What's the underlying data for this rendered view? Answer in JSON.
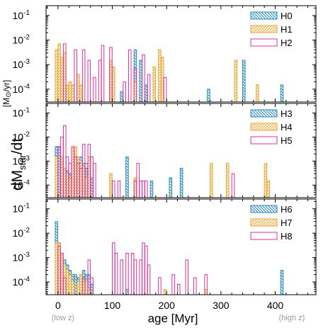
{
  "figure": {
    "ylabel": "dM",
    "ylabel_sub": "star",
    "ylabel_tail": "/dt",
    "yunit_prefix": "[M",
    "yunit_sun": "⊙",
    "yunit_suffix": "/yr]",
    "xlabel": "age [Myr]",
    "note_left": "(low z)",
    "note_right": "(high z)"
  },
  "colors": {
    "halo_a": "#2a8ab6",
    "halo_b": "#e8a630",
    "halo_c": "#e0309c"
  },
  "chart_data": [
    {
      "type": "bar",
      "panel": "top",
      "x_ticks": [
        "0",
        "100",
        "200",
        "300",
        "400"
      ],
      "y_ticks": [
        "10",
        "10",
        "10",
        "10"
      ],
      "y_tick_exps": [
        "-1",
        "-2",
        "-3",
        "-4"
      ],
      "xlim": [
        -22,
        475
      ],
      "ylim": [
        3e-05,
        0.25
      ],
      "yscale": "log",
      "legend_position": "top-right",
      "series": [
        {
          "name": "H0",
          "color": "#2a8ab6",
          "pattern": "hatch-back",
          "bins": [
            [
              95,
              100,
              0.0005
            ],
            [
              115,
              120,
              8e-05
            ],
            [
              140,
              145,
              0.004
            ],
            [
              150,
              155,
              0.0015
            ],
            [
              160,
              165,
              0.00015
            ],
            [
              185,
              190,
              6e-05
            ],
            [
              275,
              280,
              0.0001
            ],
            [
              340,
              345,
              0.0015
            ],
            [
              410,
              415,
              0.00015
            ]
          ]
        },
        {
          "name": "H1",
          "color": "#e8a630",
          "pattern": "hatch-fwd",
          "bins": [
            [
              -5,
              0,
              0.004
            ],
            [
              0,
              5,
              0.007
            ],
            [
              5,
              10,
              0.002
            ],
            [
              10,
              15,
              0.003
            ],
            [
              15,
              20,
              0.00015
            ],
            [
              20,
              25,
              0.0002
            ],
            [
              25,
              30,
              0.00015
            ],
            [
              35,
              40,
              0.0004
            ],
            [
              40,
              45,
              0.00015
            ],
            [
              95,
              100,
              0.0015
            ],
            [
              100,
              105,
              0.0008
            ],
            [
              140,
              145,
              0.0002
            ],
            [
              175,
              180,
              0.0008
            ],
            [
              185,
              190,
              0.004
            ],
            [
              190,
              195,
              0.002
            ],
            [
              325,
              330,
              0.0015
            ],
            [
              365,
              370,
              0.00015
            ]
          ]
        },
        {
          "name": "H2",
          "color": "#e0309c",
          "pattern": "outline",
          "bins": [
            [
              10,
              15,
              0.007
            ],
            [
              30,
              35,
              0.004
            ],
            [
              45,
              50,
              0.004
            ],
            [
              55,
              60,
              0.0015
            ],
            [
              65,
              70,
              0.0003
            ],
            [
              75,
              80,
              0.0015
            ],
            [
              80,
              85,
              0.006
            ],
            [
              95,
              100,
              0.005
            ],
            [
              120,
              125,
              0.0002
            ],
            [
              130,
              135,
              0.004
            ],
            [
              140,
              145,
              0.0007
            ],
            [
              155,
              160,
              0.0025
            ],
            [
              165,
              170,
              0.0004
            ],
            [
              195,
              200,
              0.0003
            ]
          ]
        }
      ]
    },
    {
      "type": "bar",
      "panel": "middle",
      "x_ticks": [
        "0",
        "100",
        "200",
        "300",
        "400"
      ],
      "y_ticks": [
        "10",
        "10",
        "10",
        "10"
      ],
      "y_tick_exps": [
        "-1",
        "-2",
        "-3",
        "-4"
      ],
      "xlim": [
        -22,
        475
      ],
      "ylim": [
        3e-05,
        0.25
      ],
      "yscale": "log",
      "legend_position": "top-right",
      "series": [
        {
          "name": "H3",
          "color": "#2a8ab6",
          "pattern": "hatch-back",
          "bins": [
            [
              -5,
              0,
              0.004
            ],
            [
              0,
              5,
              0.004
            ],
            [
              5,
              10,
              0.0015
            ],
            [
              10,
              15,
              0.0005
            ],
            [
              15,
              20,
              0.0004
            ],
            [
              20,
              25,
              0.0003
            ],
            [
              25,
              30,
              0.0002
            ],
            [
              30,
              35,
              0.0002
            ],
            [
              35,
              40,
              0.0002
            ],
            [
              40,
              45,
              0.0015
            ],
            [
              45,
              50,
              0.0008
            ],
            [
              50,
              55,
              0.0005
            ],
            [
              55,
              60,
              0.0003
            ],
            [
              60,
              65,
              0.0002
            ],
            [
              125,
              130,
              0.0015
            ],
            [
              170,
              175,
              0.00015
            ],
            [
              205,
              210,
              0.0002
            ],
            [
              225,
              230,
              0.0005
            ]
          ]
        },
        {
          "name": "H4",
          "color": "#e8a630",
          "pattern": "hatch-fwd",
          "bins": [
            [
              -5,
              0,
              0.0015
            ],
            [
              5,
              10,
              0.0015
            ],
            [
              10,
              15,
              0.0005
            ],
            [
              15,
              20,
              0.0003
            ],
            [
              20,
              25,
              0.0002
            ],
            [
              25,
              30,
              0.004
            ],
            [
              30,
              35,
              0.004
            ],
            [
              35,
              40,
              0.0015
            ],
            [
              40,
              45,
              0.0008
            ],
            [
              45,
              50,
              0.0005
            ],
            [
              50,
              55,
              0.0002
            ],
            [
              55,
              60,
              0.0015
            ],
            [
              95,
              100,
              0.0003
            ],
            [
              140,
              145,
              0.0002
            ],
            [
              280,
              285,
              0.0008
            ],
            [
              310,
              315,
              0.0008
            ],
            [
              380,
              385,
              0.0008
            ],
            [
              385,
              390,
              0.00015
            ]
          ]
        },
        {
          "name": "H5",
          "color": "#e0309c",
          "pattern": "outline",
          "bins": [
            [
              0,
              5,
              0.004
            ],
            [
              5,
              10,
              0.01
            ],
            [
              10,
              15,
              0.03
            ],
            [
              15,
              20,
              0.0015
            ],
            [
              20,
              25,
              0.0008
            ],
            [
              25,
              30,
              0.004
            ],
            [
              30,
              35,
              0.0015
            ],
            [
              35,
              40,
              0.0008
            ],
            [
              40,
              45,
              0.0005
            ],
            [
              45,
              50,
              0.005
            ],
            [
              50,
              55,
              0.0008
            ],
            [
              55,
              60,
              0.005
            ],
            [
              60,
              65,
              0.0015
            ],
            [
              65,
              70,
              0.0008
            ],
            [
              100,
              105,
              0.00015
            ],
            [
              110,
              115,
              0.00015
            ],
            [
              140,
              145,
              0.00015
            ],
            [
              145,
              150,
              0.0008
            ],
            [
              150,
              155,
              0.00015
            ],
            [
              155,
              160,
              0.00015
            ],
            [
              160,
              165,
              0.00015
            ],
            [
              320,
              325,
              0.0003
            ]
          ]
        }
      ]
    },
    {
      "type": "bar",
      "panel": "bottom",
      "x_ticks": [
        "0",
        "100",
        "200",
        "300",
        "400"
      ],
      "y_ticks": [
        "10",
        "10",
        "10",
        "10"
      ],
      "y_tick_exps": [
        "-1",
        "-2",
        "-3",
        "-4"
      ],
      "xlim": [
        -22,
        475
      ],
      "ylim": [
        3e-05,
        0.25
      ],
      "yscale": "log",
      "legend_position": "top-right",
      "series": [
        {
          "name": "H6",
          "color": "#2a8ab6",
          "pattern": "hatch-back",
          "bins": [
            [
              -5,
              0,
              0.03
            ],
            [
              0,
              5,
              0.004
            ],
            [
              5,
              10,
              0.0015
            ],
            [
              10,
              15,
              0.0008
            ],
            [
              15,
              20,
              0.0005
            ],
            [
              20,
              25,
              0.0003
            ],
            [
              25,
              30,
              0.0002
            ],
            [
              30,
              35,
              0.0002
            ],
            [
              35,
              40,
              0.00015
            ],
            [
              40,
              45,
              0.0002
            ],
            [
              45,
              50,
              0.0003
            ],
            [
              50,
              55,
              0.0002
            ],
            [
              55,
              60,
              0.0002
            ],
            [
              60,
              65,
              8e-05
            ],
            [
              125,
              130,
              5e-05
            ],
            [
              410,
              415,
              0.0003
            ]
          ]
        },
        {
          "name": "H7",
          "color": "#e8a630",
          "pattern": "hatch-fwd",
          "bins": [
            [
              -5,
              0,
              0.004
            ],
            [
              0,
              5,
              0.004
            ],
            [
              5,
              10,
              0.0015
            ],
            [
              10,
              15,
              0.0005
            ],
            [
              15,
              20,
              0.0003
            ],
            [
              20,
              25,
              0.0002
            ],
            [
              25,
              30,
              0.0001
            ],
            [
              35,
              40,
              0.0001
            ],
            [
              40,
              45,
              0.0002
            ],
            [
              45,
              50,
              0.0001
            ],
            [
              50,
              55,
              0.0001
            ],
            [
              55,
              60,
              5e-05
            ],
            [
              195,
              200,
              5e-05
            ],
            [
              270,
              275,
              5e-05
            ]
          ]
        },
        {
          "name": "H8",
          "color": "#e0309c",
          "pattern": "outline",
          "bins": [
            [
              0,
              5,
              0.003
            ],
            [
              5,
              10,
              0.0015
            ],
            [
              10,
              15,
              0.00015
            ],
            [
              45,
              50,
              0.00015
            ],
            [
              55,
              60,
              0.0008
            ],
            [
              60,
              65,
              0.00015
            ],
            [
              100,
              105,
              0.004
            ],
            [
              105,
              110,
              0.0015
            ],
            [
              115,
              120,
              0.0008
            ],
            [
              125,
              130,
              0.0015
            ],
            [
              135,
              140,
              0.0015
            ],
            [
              140,
              145,
              0.0008
            ],
            [
              150,
              155,
              0.0008
            ],
            [
              155,
              160,
              0.004
            ],
            [
              160,
              165,
              0.003
            ],
            [
              165,
              170,
              0.0005
            ],
            [
              185,
              190,
              0.00015
            ],
            [
              210,
              215,
              0.0002
            ],
            [
              220,
              225,
              8e-05
            ],
            [
              235,
              240,
              0.0008
            ],
            [
              250,
              255,
              0.00015
            ],
            [
              270,
              275,
              0.0002
            ]
          ]
        }
      ]
    }
  ]
}
